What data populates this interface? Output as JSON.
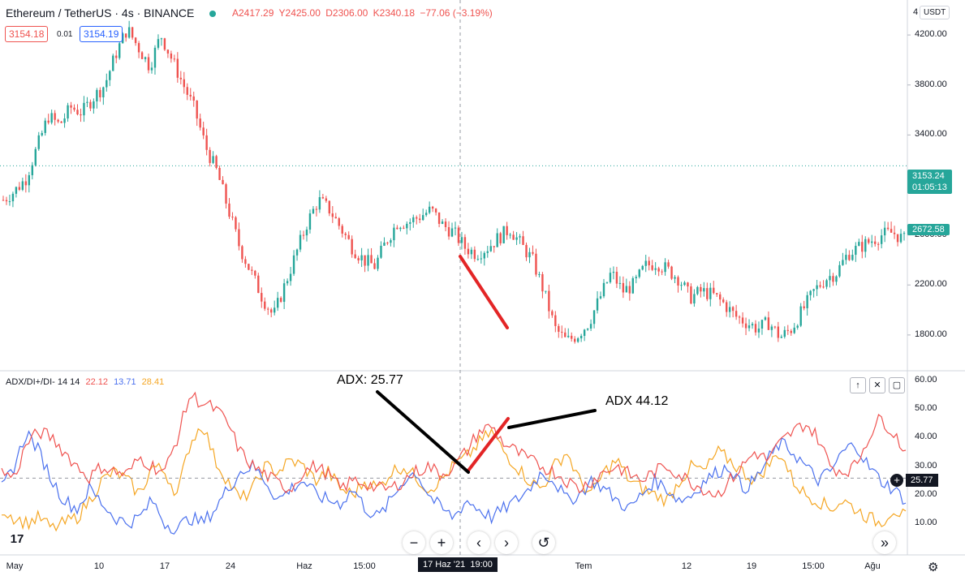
{
  "header": {
    "symbol": "Ethereum / TetherUS · 4s · BINANCE",
    "ohlc": {
      "o": "A2417.29",
      "h": "Y2425.00",
      "l": "D2306.00",
      "c": "K2340.18",
      "chg": "−77.06 (−3.19%)"
    },
    "sell_price": "3154.18",
    "spread": "0.01",
    "buy_price": "3154.19"
  },
  "currency": "USDT",
  "indicator": {
    "name": "ADX/DI+/DI- 14 14",
    "adx": "22.12",
    "di_plus": "13.71",
    "di_minus": "28.41"
  },
  "price_axis": [
    "4200.00",
    "3800.00",
    "3400.00",
    "3000.00",
    "2600.00",
    "2200.00",
    "1800.00"
  ],
  "price_labels": {
    "last": "3153.24",
    "countdown": "01:05:13",
    "cross": "2672.58"
  },
  "ind_axis": [
    "60.00",
    "50.00",
    "40.00",
    "30.00",
    "20.00",
    "10.00"
  ],
  "ind_cross_label": "25.77",
  "time_axis": [
    "May",
    "10",
    "17",
    "24",
    "Haz",
    "15:00",
    "Tem",
    "12",
    "19",
    "15:00",
    "Ağu"
  ],
  "time_cursor": "17 Haz '21  19:00",
  "annotations": {
    "adx_left": "ADX: 25.77",
    "adx_right": "ADX 44.12"
  },
  "colors": {
    "up": "#26a69a",
    "down": "#ef5350",
    "adx": "#ef5350",
    "di_plus": "#4a70ee",
    "di_minus": "#f5a623",
    "last": "#26a69a"
  },
  "chart_data": {
    "type": "candlestick",
    "price_ylim": [
      1650,
      4350
    ],
    "indicator_ylim": [
      0,
      62
    ],
    "price_path": [
      2880,
      2950,
      3050,
      3300,
      3550,
      3480,
      3620,
      3580,
      3700,
      3800,
      4050,
      4250,
      4100,
      3950,
      4200,
      4000,
      3800,
      3600,
      3300,
      3100,
      2800,
      2500,
      2300,
      2100,
      1950,
      2200,
      2450,
      2700,
      2880,
      2800,
      2650,
      2500,
      2400,
      2350,
      2550,
      2700,
      2700,
      2750,
      2800,
      2680,
      2620,
      2500,
      2450,
      2500,
      2580,
      2650,
      2520,
      2400,
      2150,
      1850,
      1750,
      1800,
      1900,
      2100,
      2300,
      2150,
      2200,
      2350,
      2380,
      2320,
      2250,
      2100,
      2150,
      2120,
      2050,
      1950,
      1900,
      1850,
      1900,
      1780,
      1850,
      2000,
      2150,
      2250,
      2300,
      2450,
      2500,
      2550,
      2600,
      2620,
      2560
    ],
    "adx": [
      28,
      26,
      38,
      42,
      40,
      35,
      30,
      26,
      30,
      28,
      27,
      33,
      30,
      28,
      40,
      55,
      52,
      50,
      45,
      35,
      30,
      27,
      24,
      22,
      28,
      30,
      27,
      22,
      25,
      24,
      22,
      22,
      25,
      28,
      30,
      27,
      30,
      35,
      42,
      44,
      38,
      35,
      32,
      30,
      28,
      25,
      22,
      25,
      28,
      30,
      27,
      25,
      28,
      30,
      27,
      24,
      22,
      20,
      25,
      30,
      35,
      32,
      38,
      42,
      45,
      40,
      30,
      28,
      30,
      40,
      47,
      42,
      35
    ],
    "di_plus": [
      22,
      30,
      42,
      35,
      25,
      18,
      15,
      22,
      17,
      12,
      10,
      12,
      18,
      10,
      8,
      12,
      10,
      15,
      22,
      28,
      30,
      25,
      18,
      22,
      25,
      20,
      18,
      17,
      22,
      15,
      12,
      18,
      25,
      28,
      20,
      15,
      12,
      18,
      15,
      12,
      15,
      18,
      22,
      28,
      25,
      18,
      20,
      25,
      22,
      18,
      15,
      20,
      25,
      22,
      18,
      20,
      25,
      28,
      30,
      22,
      25,
      32,
      38,
      35,
      30,
      25,
      28,
      35,
      38,
      30,
      25,
      22,
      18
    ],
    "di_minus": [
      15,
      12,
      10,
      12,
      8,
      10,
      12,
      18,
      25,
      28,
      25,
      20,
      30,
      28,
      20,
      38,
      45,
      32,
      25,
      18,
      22,
      30,
      28,
      32,
      30,
      25,
      28,
      22,
      20,
      25,
      22,
      28,
      30,
      26,
      22,
      25,
      30,
      33,
      38,
      42,
      35,
      30,
      25,
      22,
      30,
      35,
      25,
      20,
      28,
      32,
      25,
      22,
      20,
      18,
      25,
      30,
      28,
      35,
      32,
      28,
      25,
      30,
      35,
      25,
      20,
      18,
      15,
      18,
      15,
      12,
      10,
      15,
      12
    ]
  }
}
